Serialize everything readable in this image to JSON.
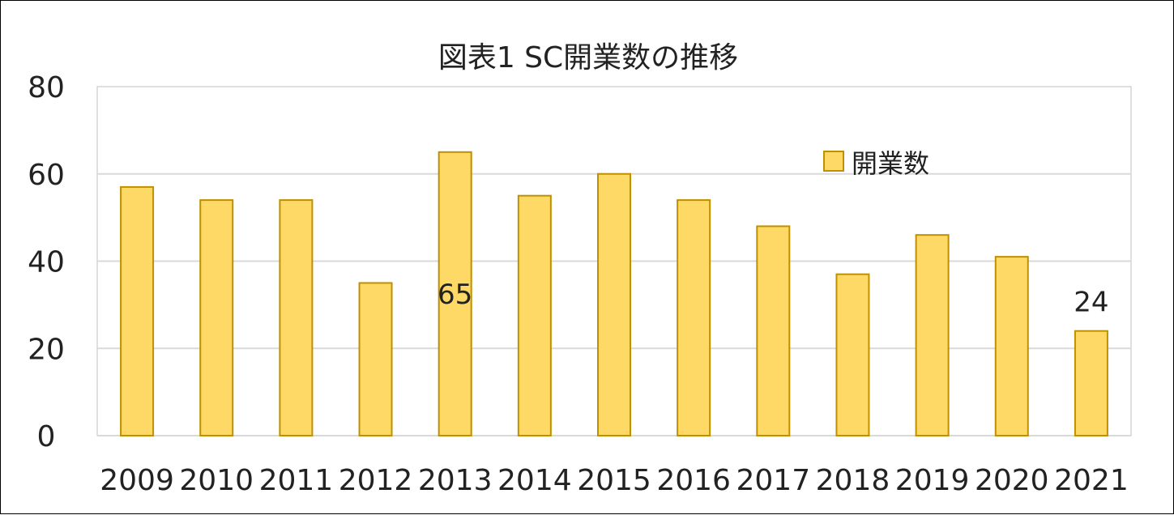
{
  "chart_data": {
    "type": "bar",
    "title": "図表1 SC開業数の推移",
    "categories": [
      "2009",
      "2010",
      "2011",
      "2012",
      "2013",
      "2014",
      "2015",
      "2016",
      "2017",
      "2018",
      "2019",
      "2020",
      "2021"
    ],
    "series": [
      {
        "name": "開業数",
        "values": [
          57,
          54,
          54,
          35,
          65,
          55,
          60,
          54,
          48,
          37,
          46,
          41,
          24
        ]
      }
    ],
    "data_labels": [
      {
        "category": "2013",
        "text": "65"
      },
      {
        "category": "2021",
        "text": "24"
      }
    ],
    "ylim": [
      0,
      80
    ],
    "yticks": [
      0,
      20,
      40,
      60,
      80
    ],
    "grid": true,
    "legend_position": "top-right",
    "colors": {
      "bar_fill": "#FFD966",
      "bar_stroke": "#BF9000",
      "grid": "#D9D9D9",
      "plot_border": "#BFBFBF"
    }
  }
}
